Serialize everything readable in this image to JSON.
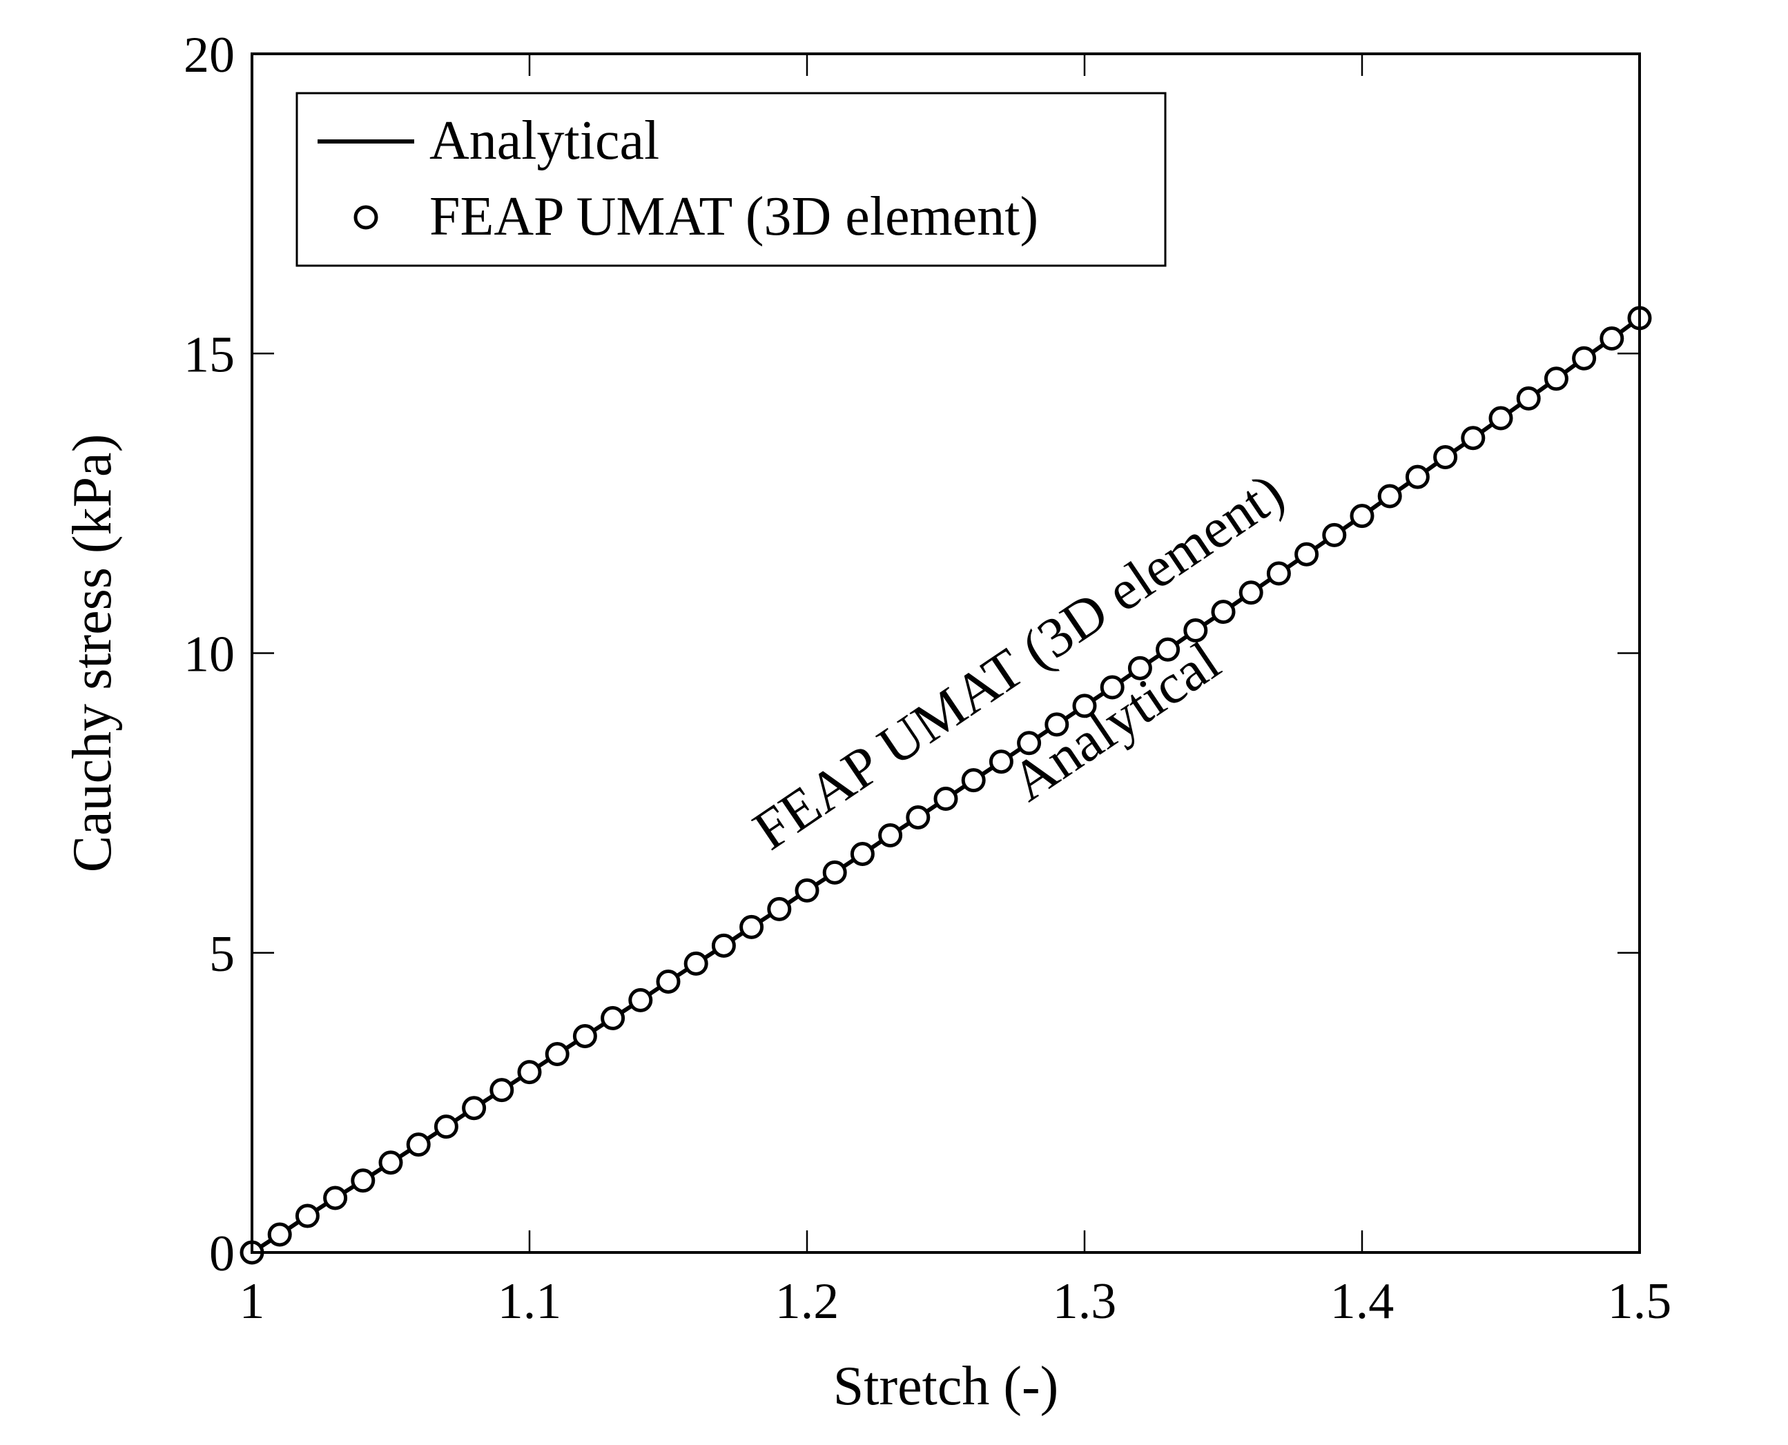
{
  "chart_data": {
    "type": "line",
    "title": "",
    "xlabel": "Stretch (-)",
    "ylabel": "Cauchy stress (kPa)",
    "xlim": [
      1,
      1.5
    ],
    "ylim": [
      0,
      20
    ],
    "x_ticks": [
      1,
      1.1,
      1.2,
      1.3,
      1.4,
      1.5
    ],
    "x_tick_labels": [
      "1",
      "1.1",
      "1.2",
      "1.3",
      "1.4",
      "1.5"
    ],
    "y_ticks": [
      0,
      5,
      10,
      15,
      20
    ],
    "y_tick_labels": [
      "0",
      "5",
      "10",
      "15",
      "20"
    ],
    "grid": false,
    "legend_position": "top-left",
    "series": [
      {
        "name": "Analytical",
        "style": "solid-line",
        "color": "#000000",
        "x": [
          1,
          1.01,
          1.02,
          1.03,
          1.04,
          1.05,
          1.06,
          1.07,
          1.08,
          1.09,
          1.1,
          1.11,
          1.12,
          1.13,
          1.14,
          1.15,
          1.16,
          1.17,
          1.18,
          1.19,
          1.2,
          1.21,
          1.22,
          1.23,
          1.24,
          1.25,
          1.26,
          1.27,
          1.28,
          1.29,
          1.3,
          1.31,
          1.32,
          1.33,
          1.34,
          1.35,
          1.36,
          1.37,
          1.38,
          1.39,
          1.4,
          1.41,
          1.42,
          1.43,
          1.44,
          1.45,
          1.46,
          1.47,
          1.48,
          1.49,
          1.5
        ],
        "y": [
          0,
          0.3,
          0.61,
          0.91,
          1.2,
          1.5,
          1.8,
          2.1,
          2.41,
          2.71,
          3.01,
          3.31,
          3.61,
          3.91,
          4.21,
          4.52,
          4.82,
          5.12,
          5.43,
          5.73,
          6.04,
          6.34,
          6.65,
          6.96,
          7.26,
          7.57,
          7.88,
          8.19,
          8.5,
          8.81,
          9.12,
          9.43,
          9.75,
          10.06,
          10.38,
          10.69,
          11.01,
          11.33,
          11.65,
          11.97,
          12.29,
          12.62,
          12.94,
          13.27,
          13.59,
          13.92,
          14.25,
          14.58,
          14.92,
          15.25,
          15.59
        ]
      },
      {
        "name": "FEAP UMAT (3D element)",
        "style": "open-circle-markers",
        "color": "#000000",
        "x": [
          1,
          1.01,
          1.02,
          1.03,
          1.04,
          1.05,
          1.06,
          1.07,
          1.08,
          1.09,
          1.1,
          1.11,
          1.12,
          1.13,
          1.14,
          1.15,
          1.16,
          1.17,
          1.18,
          1.19,
          1.2,
          1.21,
          1.22,
          1.23,
          1.24,
          1.25,
          1.26,
          1.27,
          1.28,
          1.29,
          1.3,
          1.31,
          1.32,
          1.33,
          1.34,
          1.35,
          1.36,
          1.37,
          1.38,
          1.39,
          1.4,
          1.41,
          1.42,
          1.43,
          1.44,
          1.45,
          1.46,
          1.47,
          1.48,
          1.49,
          1.5
        ],
        "y": [
          0,
          0.3,
          0.61,
          0.91,
          1.2,
          1.5,
          1.8,
          2.1,
          2.41,
          2.71,
          3.01,
          3.31,
          3.61,
          3.91,
          4.21,
          4.52,
          4.82,
          5.12,
          5.43,
          5.73,
          6.04,
          6.34,
          6.65,
          6.96,
          7.26,
          7.57,
          7.88,
          8.19,
          8.5,
          8.81,
          9.12,
          9.43,
          9.75,
          10.06,
          10.38,
          10.69,
          11.01,
          11.33,
          11.65,
          11.97,
          12.29,
          12.62,
          12.94,
          13.27,
          13.59,
          13.92,
          14.25,
          14.58,
          14.92,
          15.25,
          15.59
        ]
      }
    ],
    "annotations": [
      {
        "text": "FEAP UMAT (3D element)",
        "x": 1.28,
        "y": 9.6,
        "side": "above"
      },
      {
        "text": "Analytical",
        "x": 1.315,
        "y": 8.6,
        "side": "below"
      }
    ]
  }
}
